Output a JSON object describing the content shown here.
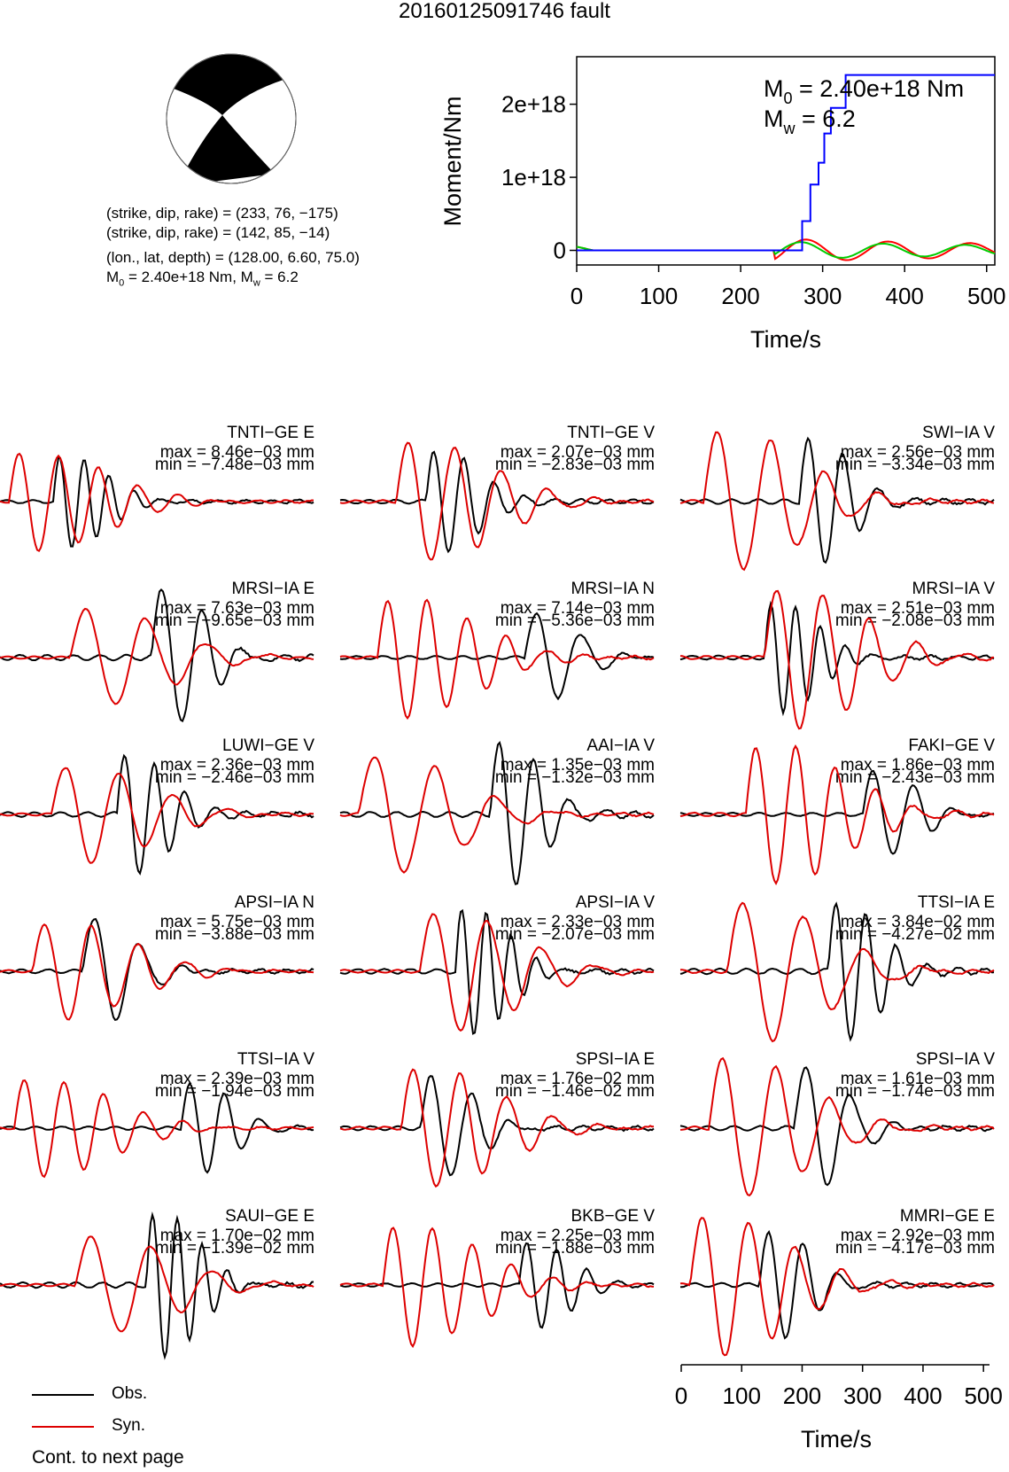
{
  "title": "20160125091746 fault",
  "info": {
    "line1": "(strike, dip, rake) = (233, 76, −175)",
    "line2": "(strike, dip, rake) = (142, 85, −14)",
    "line3": "(lon., lat, depth) = (128.00, 6.60, 75.0)",
    "line4_m0": "M",
    "line4_sub0": "0",
    "line4_mid": " = 2.40e+18 Nm, M",
    "line4_subw": "w",
    "line4_end": " = 6.2"
  },
  "moment_plot": {
    "ylabel": "Moment/Nm",
    "xlabel": "Time/s",
    "annot_m0": "M",
    "annot_m0_sub": "0",
    "annot_m0_val": " = 2.40e+18 Nm",
    "annot_mw": "M",
    "annot_mw_sub": "w",
    "annot_mw_val": " = 6.2",
    "x_ticks": [
      "0",
      "100",
      "200",
      "300",
      "400",
      "500"
    ],
    "y_ticks": [
      "0",
      "1e+18",
      "2e+18"
    ]
  },
  "chart_data": {
    "type": "line",
    "x_label": "Time/s",
    "y_label": "Moment/Nm",
    "xlim": [
      0,
      510
    ],
    "ylim": [
      -2e+17,
      2.65e+18
    ],
    "step_series": {
      "color": "#0000ff",
      "x": [
        0,
        275,
        275,
        285,
        285,
        295,
        295,
        302,
        302,
        310,
        310,
        328,
        328,
        510
      ],
      "y": [
        0,
        0,
        4e+17,
        4e+17,
        9e+17,
        9e+17,
        1.2e+18,
        1.2e+18,
        1.6e+18,
        1.6e+18,
        1.95e+18,
        1.95e+18,
        2.4e+18,
        2.4e+18
      ]
    },
    "small_series_colors": [
      "#ff0000",
      "#00cc00"
    ]
  },
  "traces": [
    {
      "station": "TNTI−GE E",
      "max": "max = 8.46e−03 mm",
      "min": "min = −7.48e−03 mm"
    },
    {
      "station": "TNTI−GE V",
      "max": "max = 2.07e−03 mm",
      "min": "min = −2.83e−03 mm"
    },
    {
      "station": "SWI−IA V",
      "max": "max = 2.56e−03 mm",
      "min": "min = −3.34e−03 mm"
    },
    {
      "station": "MRSI−IA E",
      "max": "max = 7.63e−03 mm",
      "min": "min = −9.65e−03 mm"
    },
    {
      "station": "MRSI−IA N",
      "max": "max = 7.14e−03 mm",
      "min": "min = −5.36e−03 mm"
    },
    {
      "station": "MRSI−IA V",
      "max": "max = 2.51e−03 mm",
      "min": "min = −2.08e−03 mm"
    },
    {
      "station": "LUWI−GE V",
      "max": "max = 2.36e−03 mm",
      "min": "min = −2.46e−03 mm"
    },
    {
      "station": "AAI−IA V",
      "max": "max = 1.35e−03 mm",
      "min": "min = −1.32e−03 mm"
    },
    {
      "station": "FAKI−GE V",
      "max": "max = 1.86e−03 mm",
      "min": "min = −2.43e−03 mm"
    },
    {
      "station": "APSI−IA N",
      "max": "max = 5.75e−03 mm",
      "min": "min = −3.88e−03 mm"
    },
    {
      "station": "APSI−IA V",
      "max": "max = 2.33e−03 mm",
      "min": "min = −2.07e−03 mm"
    },
    {
      "station": "TTSI−IA E",
      "max": "max = 3.84e−02 mm",
      "min": "min = −4.27e−02 mm"
    },
    {
      "station": "TTSI−IA V",
      "max": "max = 2.39e−03 mm",
      "min": "min = −1.94e−03 mm"
    },
    {
      "station": "SPSI−IA E",
      "max": "max = 1.76e−02 mm",
      "min": "min = −1.46e−02 mm"
    },
    {
      "station": "SPSI−IA V",
      "max": "max = 1.61e−03 mm",
      "min": "min = −1.74e−03 mm"
    },
    {
      "station": "SAUI−GE E",
      "max": "max = 1.70e−02 mm",
      "min": "min = −1.39e−02 mm"
    },
    {
      "station": "BKB−GE V",
      "max": "max = 2.25e−03 mm",
      "min": "min = −1.88e−03 mm"
    },
    {
      "station": "MMRI−GE E",
      "max": "max = 2.92e−03 mm",
      "min": "min = −4.17e−03 mm"
    }
  ],
  "trace_axis": {
    "xlabel": "Time/s",
    "x_ticks": [
      "0",
      "100",
      "200",
      "300",
      "400",
      "500"
    ]
  },
  "legend": {
    "obs_label": "Obs.",
    "syn_label": "Syn.",
    "obs_color": "#000000",
    "syn_color": "#dd0000"
  },
  "footer": "Cont. to next page"
}
